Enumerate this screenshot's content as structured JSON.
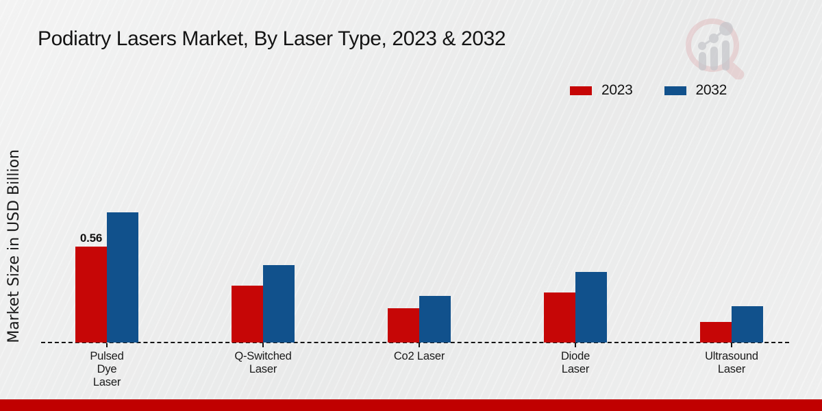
{
  "page": {
    "title": "Podiatry Lasers Market, By Laser Type, 2023 & 2032"
  },
  "colors": {
    "series_2023": "#c60606",
    "series_2032": "#11518c",
    "axis": "#141414",
    "footer_bar": "#c00000",
    "watermark_ring": "#dfb4b7",
    "watermark_bars": "#c7c7cc"
  },
  "legend": {
    "items": [
      {
        "label": "2023",
        "color": "#c60606"
      },
      {
        "label": "2032",
        "color": "#11518c"
      }
    ]
  },
  "y_axis": {
    "label": "Market Size in USD Billion"
  },
  "watermark": {
    "icon": "magnifier-bar-chart-logo"
  },
  "chart_data": {
    "type": "bar",
    "title": "Podiatry Lasers Market, By Laser Type, 2023 & 2032",
    "xlabel": "",
    "ylabel": "Market Size in USD Billion",
    "categories": [
      "Pulsed Dye Laser",
      "Q-Switched Laser",
      "Co2 Laser",
      "Diode Laser",
      "Ultrasound Laser"
    ],
    "category_label_lines": [
      "Pulsed\nDye\nLaser",
      "Q-Switched\nLaser",
      "Co2 Laser",
      "Diode\nLaser",
      "Ultrasound\nLaser"
    ],
    "series": [
      {
        "name": "2023",
        "color": "#c60606",
        "values": [
          0.56,
          0.33,
          0.2,
          0.29,
          0.12
        ]
      },
      {
        "name": "2032",
        "color": "#11518c",
        "values": [
          0.76,
          0.45,
          0.27,
          0.41,
          0.21
        ]
      }
    ],
    "annotations": [
      {
        "category_index": 0,
        "series_index": 0,
        "text": "0.56"
      }
    ],
    "ylim": [
      0,
      1.0
    ],
    "grid": false,
    "legend_position": "top-right",
    "baseline_style": "dashed"
  }
}
